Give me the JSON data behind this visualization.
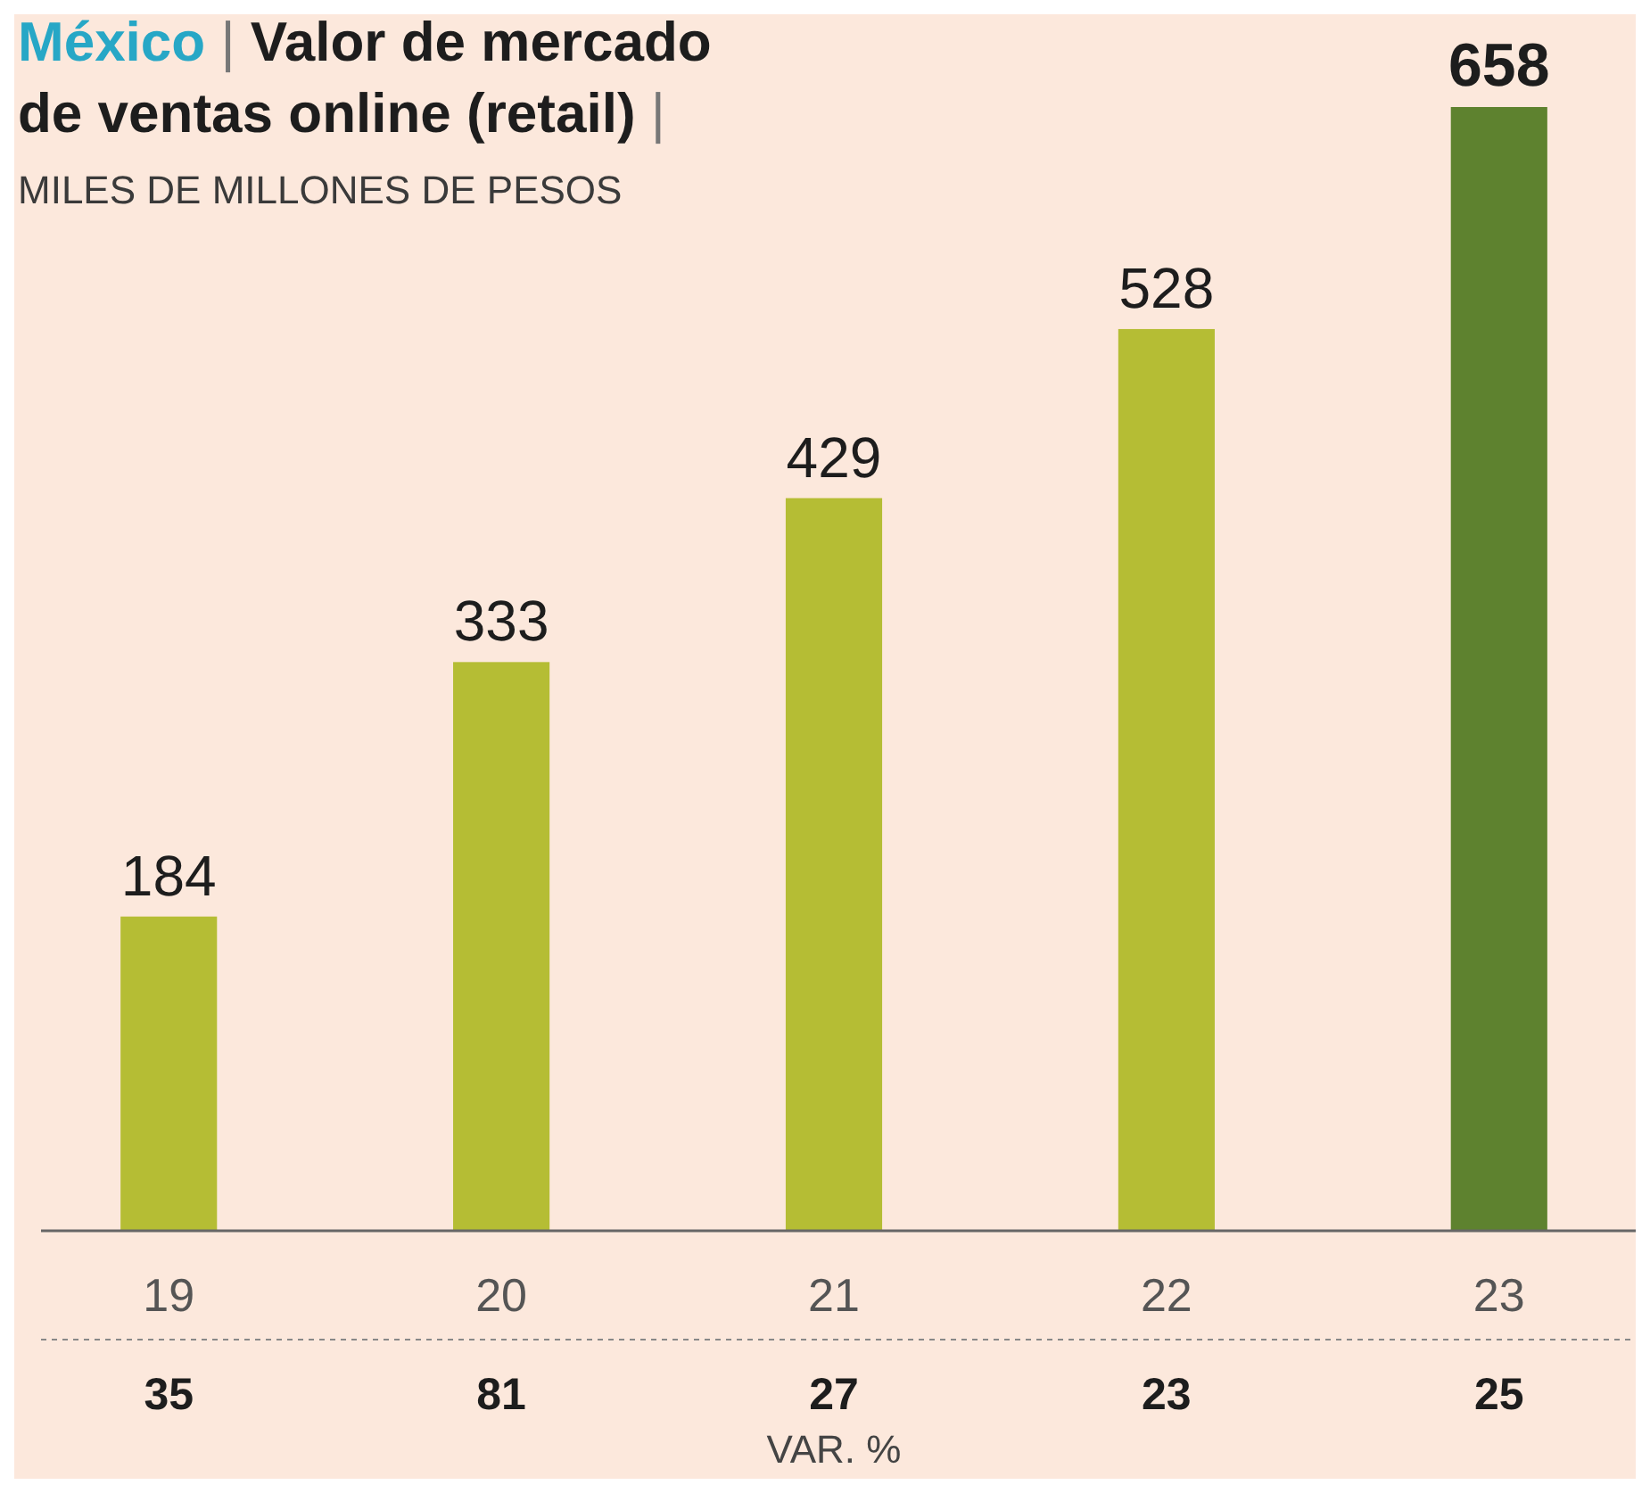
{
  "chart_data": {
    "type": "bar",
    "title": "México | Valor de mercado de ventas online (retail) | MILES DE MILLONES DE PESOS",
    "categories": [
      "19",
      "20",
      "21",
      "22",
      "23"
    ],
    "values": [
      184,
      333,
      429,
      528,
      658
    ],
    "colors": [
      "#b5bd34",
      "#b5bd34",
      "#b5bd34",
      "#b5bd34",
      "#5e822f"
    ],
    "data_labels": true,
    "annotations": [
      "35",
      "81",
      "27",
      "23",
      "25",
      "VAR. %"
    ]
  }
}
